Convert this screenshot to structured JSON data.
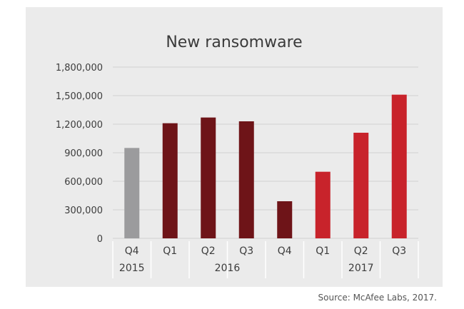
{
  "chart_data": {
    "type": "bar",
    "title": "New ransomware",
    "xlabel": "",
    "ylabel": "",
    "ylim": [
      0,
      1800000
    ],
    "yticks": [
      0,
      300000,
      600000,
      900000,
      1200000,
      1500000,
      1800000
    ],
    "ytick_labels": [
      "0",
      "300,000",
      "600,000",
      "900,000",
      "1,200,000",
      "1,500,000",
      "1,800,000"
    ],
    "grid": true,
    "legend": "none",
    "categories": [
      "Q4",
      "Q1",
      "Q2",
      "Q3",
      "Q4",
      "Q1",
      "Q2",
      "Q3"
    ],
    "year_groups": [
      {
        "label": "2015",
        "start": 0,
        "end": 0
      },
      {
        "label": "2016",
        "start": 1,
        "end": 4
      },
      {
        "label": "2017",
        "start": 5,
        "end": 7
      }
    ],
    "values": [
      950000,
      1210000,
      1270000,
      1230000,
      390000,
      700000,
      1110000,
      1510000
    ],
    "bar_colors": [
      "#9b9b9d",
      "#6e1418",
      "#6e1418",
      "#6e1418",
      "#6e1418",
      "#c8232b",
      "#c8232b",
      "#c8232b"
    ]
  },
  "source": "Source: McAfee Labs, 2017.",
  "colors": {
    "panel_bg": "#ebebeb",
    "gridline": "#d2d2d2",
    "axis_text": "#3c3c3c",
    "title_text": "#3a3a3a"
  }
}
